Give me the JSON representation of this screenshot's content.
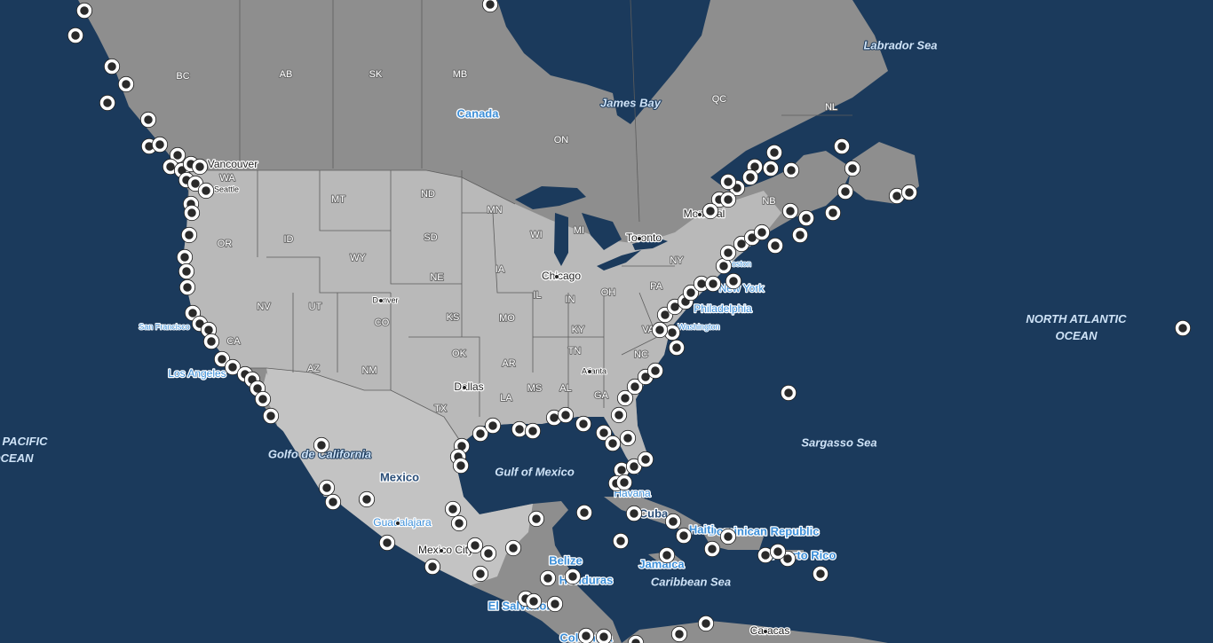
{
  "labels": {
    "water": [
      "Labrador Sea",
      "James Bay",
      "NORTH ATLANTIC OCEAN",
      "PACIFIC OCEAN",
      "Sargasso Sea",
      "Golfo de California",
      "Gulf of Mexico",
      "Caribbean  Sea"
    ],
    "countries": [
      "Canada",
      "Mexico",
      "Cuba",
      "Dominican Republic",
      "Puerto Rico",
      "Belize",
      "Jamaica",
      "Honduras",
      "El Salvador",
      "Colombia",
      "Haiti"
    ],
    "regions": [
      "BC",
      "AB",
      "SK",
      "MB",
      "QC",
      "NL",
      "ON",
      "WA",
      "MT",
      "ND",
      "MN",
      "NB",
      "OR",
      "ID",
      "SD",
      "WI",
      "MI",
      "NY",
      "WY",
      "NE",
      "IA",
      "PA",
      "NV",
      "UT",
      "CO",
      "IL",
      "IN",
      "OH",
      "KS",
      "MO",
      "KY",
      "CA",
      "TN",
      "VA",
      "NC",
      "AZ",
      "NM",
      "OK",
      "AR",
      "MS",
      "AL",
      "GA",
      "TX",
      "LA"
    ],
    "cities": [
      "Vancouver",
      "Seattle",
      "Montréal",
      "Toronto",
      "Chicago",
      "Denver",
      "New York",
      "Philadelphia",
      "Washington",
      "San Francisco",
      "Los Angeles",
      "Atlanta",
      "Dallas",
      "Havana",
      "Guadalajara",
      "Mexico City",
      "Caracas",
      "Boston"
    ]
  }
}
